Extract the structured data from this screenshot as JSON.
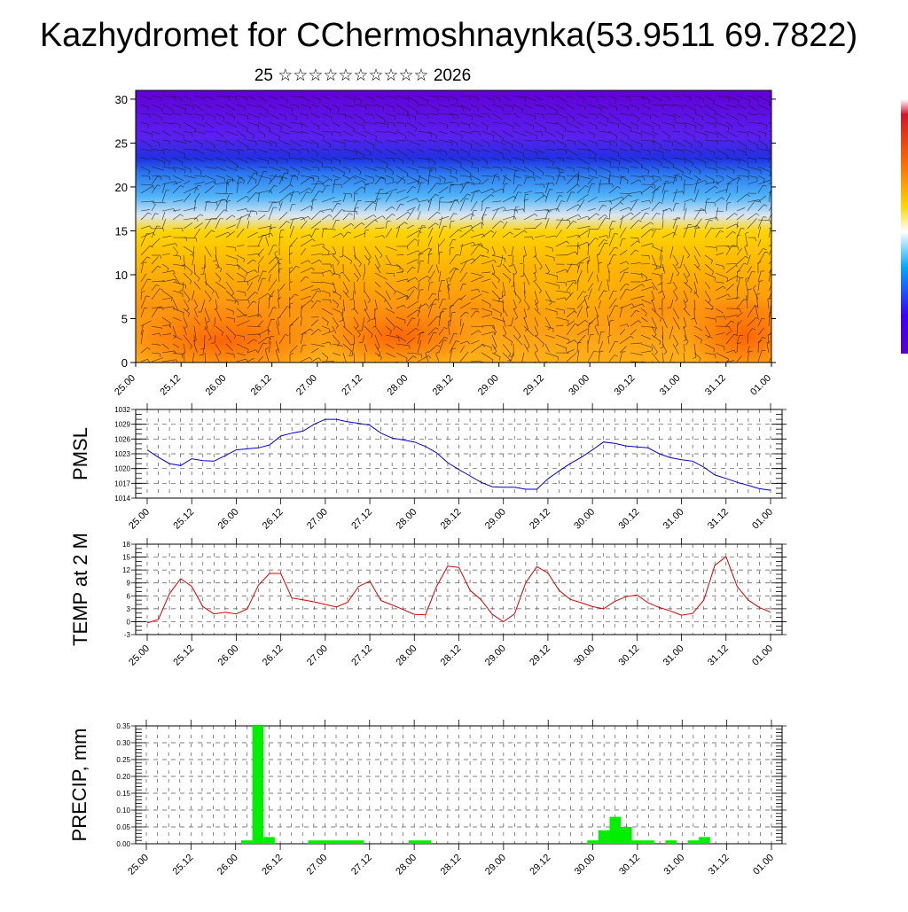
{
  "header": {
    "title": "Kazhydromet for CChermoshnaynka(53.9511 69.7822)",
    "subtitle": "25 ☆☆☆☆☆☆☆☆☆☆ 2026"
  },
  "colors": {
    "pmsl_line": "#0000cc",
    "temp_line": "#dd0000",
    "precip_bar": "#00ee00",
    "grid": "#555555"
  },
  "chart_data": [
    {
      "type": "heatmap",
      "name": "cross-section",
      "title": "",
      "xlabel": "",
      "ylabel": "",
      "x_tick_labels": [
        "25.00",
        "25.12",
        "26.00",
        "26.12",
        "27.00",
        "27.12",
        "28.00",
        "28.12",
        "29.00",
        "29.12",
        "30.00",
        "30.12",
        "31.00",
        "31.12",
        "01.00"
      ],
      "y_ticks": [
        0,
        5,
        10,
        15,
        20,
        25,
        30
      ],
      "ylim": [
        0,
        31
      ],
      "colorbar_colors": [
        "#ffffff",
        "#d4142a",
        "#ff6a00",
        "#ffd600",
        "#ffffff",
        "#00a8ff",
        "#3a00ff",
        "#5a00c8"
      ]
    },
    {
      "type": "line",
      "name": "pmsl",
      "ylabel": "PMSL",
      "x_tick_labels": [
        "25.00",
        "25.12",
        "26.00",
        "26.12",
        "27.00",
        "27.12",
        "28.00",
        "28.12",
        "29.00",
        "29.12",
        "30.00",
        "30.12",
        "31.00",
        "31.12",
        "01.00"
      ],
      "y_ticks": [
        1014,
        1017,
        1020,
        1023,
        1026,
        1029,
        1032
      ],
      "ylim": [
        1014,
        1032
      ],
      "series": [
        {
          "name": "PMSL",
          "values": [
            1023.8,
            1022.3,
            1021,
            1020.6,
            1022,
            1021.6,
            1021.5,
            1022.6,
            1023.8,
            1024,
            1024.2,
            1024.8,
            1026.6,
            1027.2,
            1027.6,
            1029,
            1030,
            1030,
            1029.5,
            1029.2,
            1028.8,
            1027.2,
            1026.2,
            1025.8,
            1025.4,
            1024.5,
            1023.2,
            1021.2,
            1019.8,
            1018.5,
            1017.2,
            1016.3,
            1016.2,
            1016.2,
            1015.8,
            1015.8,
            1017.9,
            1019.5,
            1021,
            1022.3,
            1023.8,
            1025.4,
            1025.1,
            1024.6,
            1024.4,
            1024.2,
            1023,
            1022.2,
            1021.8,
            1021.5,
            1020.3,
            1018.7,
            1018,
            1017.2,
            1016.6,
            1015.9,
            1015.6
          ]
        }
      ]
    },
    {
      "type": "line",
      "name": "temp",
      "ylabel": "TEMP at 2 M",
      "x_tick_labels": [
        "25.00",
        "25.12",
        "26.00",
        "26.12",
        "27.00",
        "27.12",
        "28.00",
        "28.12",
        "29.00",
        "29.12",
        "30.00",
        "30.12",
        "31.00",
        "31.12",
        "01.00"
      ],
      "y_ticks": [
        -3,
        0,
        3,
        6,
        9,
        12,
        15,
        18
      ],
      "ylim": [
        -3,
        18
      ],
      "series": [
        {
          "name": "TEMP at 2 M",
          "values": [
            -0.3,
            0.5,
            6.5,
            10,
            8.2,
            3.5,
            1.8,
            2.2,
            1.8,
            3,
            8.5,
            11.2,
            11.2,
            5.5,
            5.1,
            4.6,
            4,
            3.4,
            4.5,
            8.2,
            9.4,
            4.9,
            3.9,
            2.8,
            1.7,
            1.6,
            8.2,
            12.9,
            12.6,
            7.3,
            5.1,
            1.7,
            0,
            1.8,
            9,
            12.8,
            11.3,
            7.3,
            5.2,
            4.4,
            3.5,
            3,
            4.7,
            5.8,
            6.2,
            4.4,
            3.3,
            2.5,
            1.5,
            1.9,
            5,
            13.1,
            15.1,
            8.2,
            5,
            3.3,
            2.2
          ]
        }
      ]
    },
    {
      "type": "bar",
      "name": "precip",
      "ylabel": "PRECIP, mm",
      "x_tick_labels": [
        "25.00",
        "25.12",
        "26.00",
        "26.12",
        "27.00",
        "27.12",
        "28.00",
        "28.12",
        "29.00",
        "29.12",
        "30.00",
        "30.12",
        "31.00",
        "31.12",
        "01.00"
      ],
      "y_ticks": [
        0,
        0.05,
        0.1,
        0.15,
        0.2,
        0.25,
        0.3,
        0.35
      ],
      "y_tick_labels": [
        "0.00",
        "0.05",
        "0.10",
        "0.15",
        "0.20",
        "0.25",
        "0.30",
        "0.35"
      ],
      "ylim": [
        0,
        0.35
      ],
      "values": [
        0,
        0,
        0,
        0,
        0,
        0,
        0,
        0,
        0,
        0.01,
        0.35,
        0.02,
        0,
        0,
        0,
        0.01,
        0.01,
        0.01,
        0.01,
        0.01,
        0,
        0,
        0,
        0,
        0.01,
        0.01,
        0,
        0,
        0,
        0,
        0,
        0,
        0,
        0,
        0,
        0,
        0,
        0,
        0,
        0,
        0.01,
        0.04,
        0.08,
        0.05,
        0.01,
        0.01,
        0,
        0.01,
        0,
        0.01,
        0.02,
        0,
        0,
        0,
        0,
        0,
        0
      ]
    }
  ]
}
